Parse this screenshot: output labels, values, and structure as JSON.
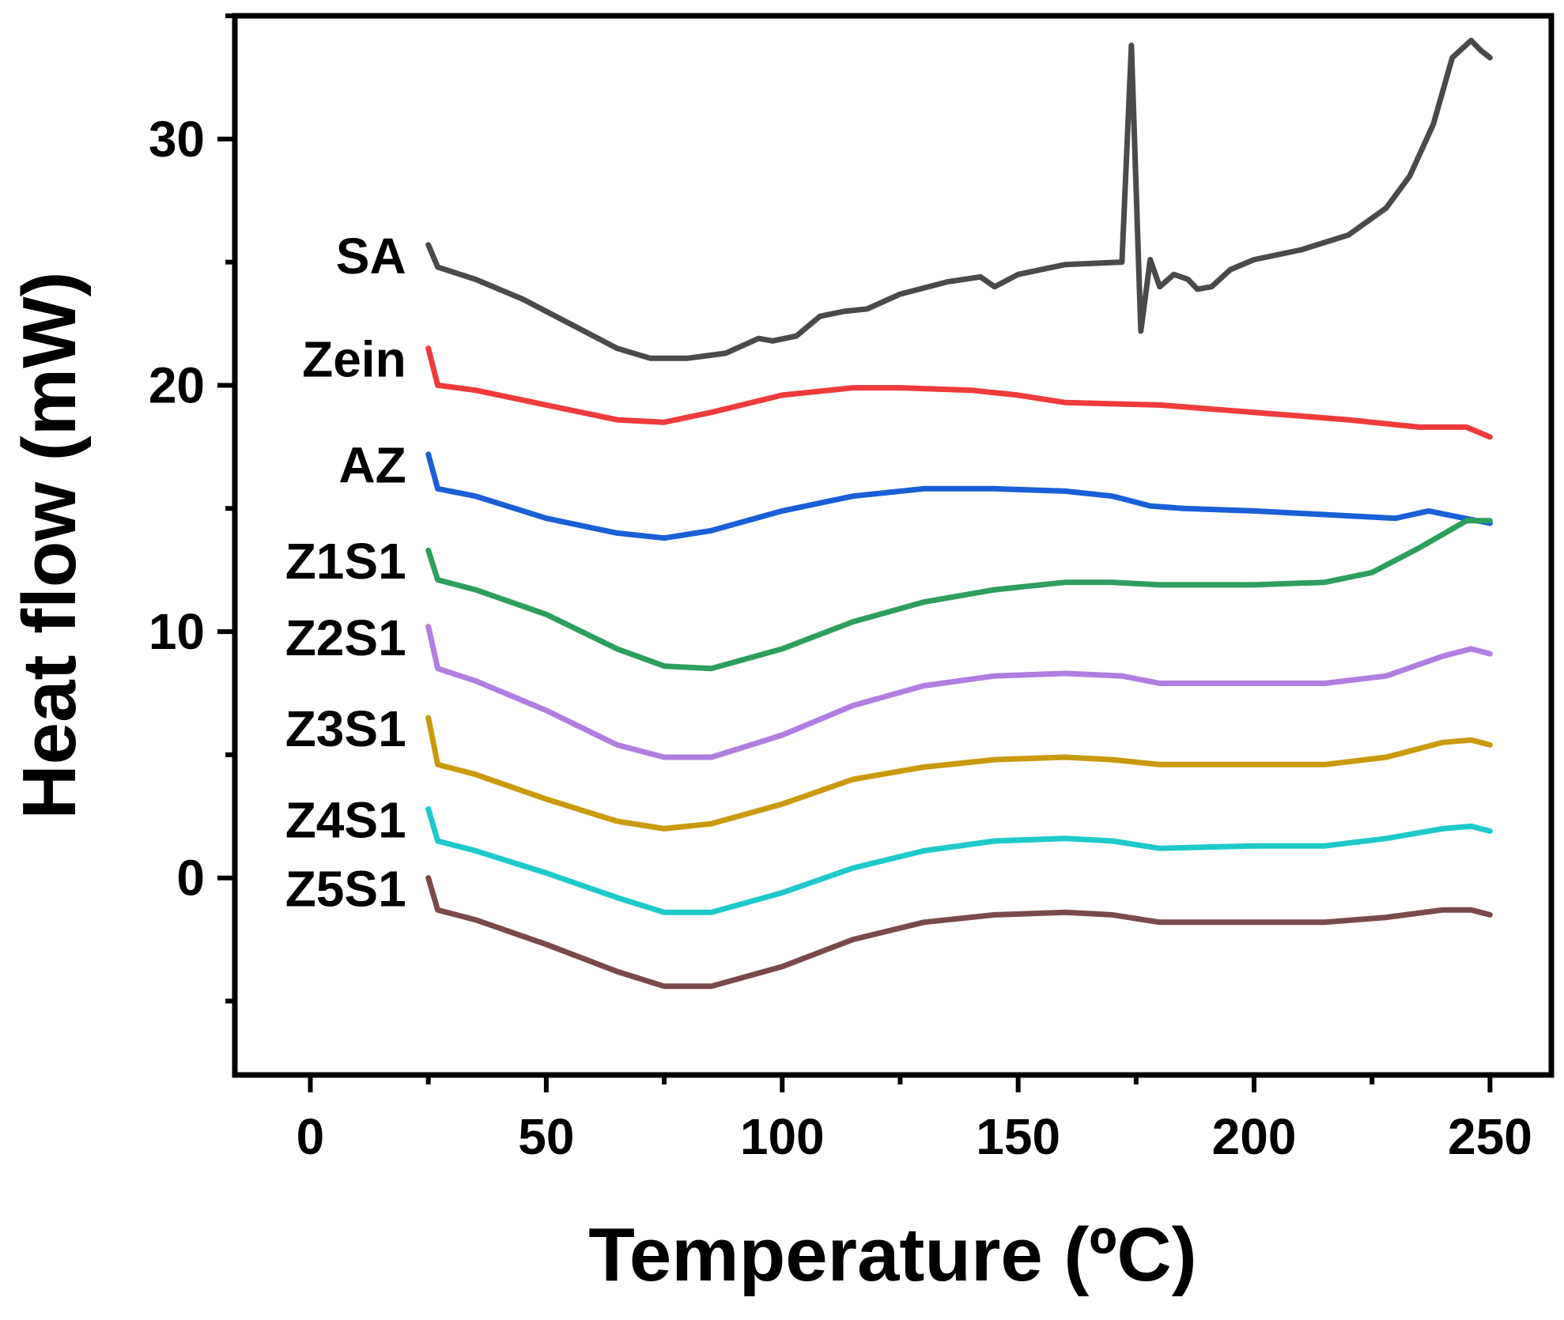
{
  "chart_data": {
    "type": "line",
    "title": "",
    "xlabel": "Temperature (ºC)",
    "ylabel": "Heat flow (mW)",
    "xlim": [
      -16,
      263
    ],
    "ylim": [
      -8,
      35
    ],
    "xticks": [
      0,
      50,
      100,
      150,
      200,
      250
    ],
    "yticks": [
      0,
      10,
      20,
      30
    ],
    "series": [
      {
        "name": "SA",
        "color": "#4a4a4a",
        "x": [
          25,
          27,
          35,
          45,
          55,
          65,
          72,
          80,
          88,
          95,
          98,
          103,
          108,
          113,
          118,
          125,
          135,
          142,
          145,
          150,
          160,
          172,
          174,
          176,
          178,
          180,
          183,
          186,
          188,
          191,
          195,
          200,
          210,
          220,
          228,
          233,
          238,
          242,
          246,
          248,
          250
        ],
        "y": [
          25.7,
          24.8,
          24.3,
          23.5,
          22.5,
          21.5,
          21.1,
          21.1,
          21.3,
          21.9,
          21.8,
          22.0,
          22.8,
          23.0,
          23.1,
          23.7,
          24.2,
          24.4,
          24.0,
          24.5,
          24.9,
          25.0,
          33.8,
          22.2,
          25.1,
          24.0,
          24.5,
          24.3,
          23.9,
          24.0,
          24.7,
          25.1,
          25.5,
          26.1,
          27.2,
          28.5,
          30.6,
          33.3,
          34.0,
          33.6,
          33.3
        ]
      },
      {
        "name": "Zein",
        "color": "#ef3b3b",
        "x": [
          25,
          27,
          35,
          50,
          65,
          75,
          85,
          100,
          115,
          125,
          140,
          150,
          160,
          180,
          200,
          220,
          235,
          245,
          250
        ],
        "y": [
          21.5,
          20.0,
          19.8,
          19.2,
          18.6,
          18.5,
          18.9,
          19.6,
          19.9,
          19.9,
          19.8,
          19.6,
          19.3,
          19.2,
          18.9,
          18.6,
          18.3,
          18.3,
          17.9
        ]
      },
      {
        "name": "AZ",
        "color": "#1a5fd6",
        "x": [
          25,
          27,
          35,
          50,
          65,
          75,
          85,
          100,
          115,
          130,
          145,
          160,
          170,
          178,
          185,
          200,
          220,
          230,
          237,
          242,
          250
        ],
        "y": [
          17.2,
          15.8,
          15.5,
          14.6,
          14.0,
          13.8,
          14.1,
          14.9,
          15.5,
          15.8,
          15.8,
          15.7,
          15.5,
          15.1,
          15.0,
          14.9,
          14.7,
          14.6,
          14.9,
          14.7,
          14.4
        ]
      },
      {
        "name": "Z1S1",
        "color": "#2e9e5e",
        "x": [
          25,
          27,
          35,
          50,
          65,
          75,
          85,
          100,
          115,
          130,
          145,
          160,
          170,
          180,
          190,
          200,
          215,
          225,
          235,
          245,
          250
        ],
        "y": [
          13.3,
          12.1,
          11.7,
          10.7,
          9.3,
          8.6,
          8.5,
          9.3,
          10.4,
          11.2,
          11.7,
          12.0,
          12.0,
          11.9,
          11.9,
          11.9,
          12.0,
          12.4,
          13.4,
          14.5,
          14.5
        ]
      },
      {
        "name": "Z2S1",
        "color": "#b07ee0",
        "x": [
          25,
          27,
          35,
          50,
          65,
          75,
          85,
          100,
          115,
          130,
          145,
          160,
          172,
          180,
          190,
          200,
          215,
          228,
          240,
          246,
          250
        ],
        "y": [
          10.2,
          8.5,
          8.0,
          6.8,
          5.4,
          4.9,
          4.9,
          5.8,
          7.0,
          7.8,
          8.2,
          8.3,
          8.2,
          7.9,
          7.9,
          7.9,
          7.9,
          8.2,
          9.0,
          9.3,
          9.1
        ]
      },
      {
        "name": "Z3S1",
        "color": "#c99a0e",
        "x": [
          25,
          27,
          35,
          50,
          65,
          75,
          85,
          100,
          115,
          130,
          145,
          160,
          170,
          180,
          200,
          215,
          228,
          240,
          246,
          250
        ],
        "y": [
          6.5,
          4.6,
          4.2,
          3.2,
          2.3,
          2.0,
          2.2,
          3.0,
          4.0,
          4.5,
          4.8,
          4.9,
          4.8,
          4.6,
          4.6,
          4.6,
          4.9,
          5.5,
          5.6,
          5.4
        ]
      },
      {
        "name": "Z4S1",
        "color": "#1fc9c9",
        "x": [
          25,
          27,
          35,
          50,
          65,
          75,
          85,
          100,
          115,
          130,
          145,
          160,
          170,
          180,
          200,
          215,
          228,
          240,
          246,
          250
        ],
        "y": [
          2.8,
          1.5,
          1.1,
          0.2,
          -0.8,
          -1.4,
          -1.4,
          -0.6,
          0.4,
          1.1,
          1.5,
          1.6,
          1.5,
          1.2,
          1.3,
          1.3,
          1.6,
          2.0,
          2.1,
          1.9
        ]
      },
      {
        "name": "Z5S1",
        "color": "#7a4a4a",
        "x": [
          25,
          27,
          35,
          50,
          65,
          75,
          85,
          100,
          115,
          130,
          145,
          160,
          170,
          180,
          200,
          215,
          228,
          240,
          246,
          250
        ],
        "y": [
          0.0,
          -1.3,
          -1.7,
          -2.7,
          -3.8,
          -4.4,
          -4.4,
          -3.6,
          -2.5,
          -1.8,
          -1.5,
          -1.4,
          -1.5,
          -1.8,
          -1.8,
          -1.8,
          -1.6,
          -1.3,
          -1.3,
          -1.5
        ]
      }
    ]
  }
}
